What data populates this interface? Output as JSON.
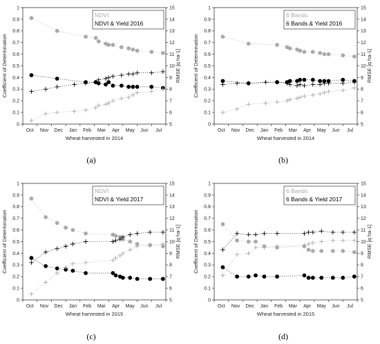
{
  "figure": {
    "panels": [
      {
        "letter": "(a)",
        "xlabel": "Wheat harvested in 2014",
        "legend_gray": "NDVI",
        "legend_black": "NDVI & Yield 2016"
      },
      {
        "letter": "(b)",
        "xlabel": "Wheat harvested in 2014",
        "legend_gray": "6 Bands",
        "legend_black": "6 Bands & Yield 2016"
      },
      {
        "letter": "(c)",
        "xlabel": "Wheat harvested in 2015",
        "legend_gray": "NDVI",
        "legend_black": "NDVI & Yield 2017"
      },
      {
        "letter": "(d)",
        "xlabel": "Wheat harvested in 2015",
        "legend_gray": "6 Bands",
        "legend_black": "6 Bands & Yield 2017"
      }
    ],
    "colors": {
      "gray_series": "#aaaaaa",
      "black_series": "#000000",
      "axis": "#333333"
    }
  },
  "chart_data": [
    {
      "type": "scatter",
      "title": "",
      "xlabel": "Wheat harvested in 2014",
      "ylabel": "Coefficient of Determination",
      "ylabel_right": "RMSE [q ha-1]",
      "categories": [
        "Oct",
        "Nov",
        "Dec",
        "Jan",
        "Feb",
        "Mar",
        "Apr",
        "May",
        "Jun",
        "Jul"
      ],
      "ylim": [
        0,
        1
      ],
      "yticks": [
        0,
        0.1,
        0.2,
        0.3,
        0.4,
        0.5,
        0.6,
        0.7,
        0.8,
        0.9,
        1
      ],
      "ylim_right": [
        5,
        15
      ],
      "yticks_right": [
        5,
        6,
        7,
        8,
        9,
        10,
        11,
        12,
        13,
        14,
        15
      ],
      "legend_position": "top-right",
      "series": [
        {
          "name": "NDVI",
          "style": "gray-circle",
          "axis": "left",
          "x": [
            0.1,
            1.9,
            3.9,
            4.6,
            4.8,
            5.3,
            5.5,
            5.8,
            6.4,
            6.9,
            7.2,
            7.5,
            8.5,
            9.3
          ],
          "y": [
            0.91,
            0.8,
            0.75,
            0.74,
            0.71,
            0.69,
            0.68,
            0.68,
            0.66,
            0.65,
            0.64,
            0.63,
            0.62,
            0.61
          ]
        },
        {
          "name": "NDVI & Yield 2016",
          "style": "black-circle",
          "axis": "left",
          "x": [
            0.1,
            1.9,
            3.9,
            4.6,
            4.8,
            5.3,
            5.5,
            5.8,
            6.4,
            6.9,
            7.2,
            7.5,
            8.5,
            9.3
          ],
          "y": [
            0.42,
            0.39,
            0.36,
            0.36,
            0.35,
            0.34,
            0.36,
            0.33,
            0.33,
            0.32,
            0.32,
            0.32,
            0.32,
            0.31
          ]
        },
        {
          "name": "NDVI RMSE",
          "style": "gray-plus",
          "axis": "right",
          "x": [
            0.1,
            1.1,
            1.9,
            3.1,
            3.9,
            4.6,
            4.8,
            5.3,
            5.5,
            5.8,
            6.4,
            6.9,
            7.2,
            7.5,
            8.5,
            9.3
          ],
          "y": [
            5.3,
            5.9,
            6.0,
            6.1,
            6.2,
            6.4,
            6.6,
            6.7,
            6.8,
            7.0,
            7.2,
            7.3,
            7.5,
            7.7,
            7.8,
            8.0
          ]
        },
        {
          "name": "NDVI & Yield 2016 RMSE",
          "style": "black-plus",
          "axis": "right",
          "x": [
            0.1,
            1.1,
            1.9,
            3.1,
            3.9,
            4.6,
            4.8,
            5.3,
            5.5,
            5.8,
            6.4,
            6.9,
            7.2,
            7.5,
            8.5,
            9.3
          ],
          "y": [
            7.8,
            8.0,
            8.2,
            8.4,
            8.5,
            8.6,
            8.8,
            8.9,
            9.0,
            9.1,
            9.2,
            9.3,
            9.3,
            9.4,
            9.4,
            9.5
          ]
        }
      ]
    },
    {
      "type": "scatter",
      "title": "",
      "xlabel": "Wheat harvested in 2014",
      "ylabel": "Coefficient of Determination",
      "ylabel_right": "RMSE [q ha-1]",
      "categories": [
        "Oct",
        "Nov",
        "Dec",
        "Jan",
        "Feb",
        "Mar",
        "Apr",
        "May",
        "Jun",
        "Jul"
      ],
      "ylim": [
        0,
        1
      ],
      "yticks": [
        0,
        0.1,
        0.2,
        0.3,
        0.4,
        0.5,
        0.6,
        0.7,
        0.8,
        0.9,
        1
      ],
      "ylim_right": [
        5,
        15
      ],
      "yticks_right": [
        5,
        6,
        7,
        8,
        9,
        10,
        11,
        12,
        13,
        14,
        15
      ],
      "legend_position": "top-right",
      "series": [
        {
          "name": "6 Bands",
          "style": "gray-circle",
          "axis": "left",
          "x": [
            0.1,
            1.9,
            3.9,
            4.6,
            4.8,
            5.3,
            5.5,
            5.8,
            6.4,
            6.9,
            7.2,
            7.5,
            8.5,
            9.3
          ],
          "y": [
            0.75,
            0.69,
            0.68,
            0.66,
            0.65,
            0.64,
            0.63,
            0.62,
            0.62,
            0.61,
            0.6,
            0.6,
            0.59,
            0.58
          ]
        },
        {
          "name": "6 Bands & Yield 2016",
          "style": "black-circle",
          "axis": "left",
          "x": [
            0.1,
            1.9,
            3.9,
            4.6,
            4.8,
            5.3,
            5.5,
            5.8,
            6.4,
            6.9,
            7.2,
            7.5,
            8.5,
            9.3
          ],
          "y": [
            0.37,
            0.35,
            0.36,
            0.36,
            0.37,
            0.37,
            0.38,
            0.38,
            0.38,
            0.37,
            0.37,
            0.37,
            0.38,
            0.37
          ]
        },
        {
          "name": "6 Bands RMSE",
          "style": "gray-plus",
          "axis": "right",
          "x": [
            0.1,
            1.1,
            1.9,
            3.1,
            3.9,
            4.6,
            4.8,
            5.3,
            5.5,
            5.8,
            6.4,
            6.9,
            7.2,
            7.5,
            8.5,
            9.3
          ],
          "y": [
            6.0,
            6.3,
            6.7,
            6.8,
            6.9,
            7.0,
            7.1,
            7.2,
            7.3,
            7.4,
            7.5,
            7.6,
            7.7,
            7.8,
            7.9,
            8.1
          ]
        },
        {
          "name": "6 Bands & Yield 2016 RMSE",
          "style": "black-plus",
          "axis": "right",
          "x": [
            0.1,
            1.1,
            1.9,
            3.1,
            3.9,
            4.6,
            4.8,
            5.3,
            5.5,
            5.8,
            6.4,
            6.9,
            7.2,
            7.5,
            8.5,
            9.3
          ],
          "y": [
            8.4,
            8.5,
            8.5,
            8.6,
            8.6,
            8.5,
            8.4,
            8.3,
            8.4,
            8.3,
            8.4,
            8.4,
            8.5,
            8.5,
            8.5,
            8.6
          ]
        }
      ]
    },
    {
      "type": "scatter",
      "title": "",
      "xlabel": "Wheat harvested in 2015",
      "ylabel": "Coefficient of Determination",
      "ylabel_right": "RMSE [q ha-1]",
      "categories": [
        "Oct",
        "Nov",
        "Dec",
        "Jan",
        "Feb",
        "Mar",
        "Apr",
        "May",
        "Jun",
        "Jul"
      ],
      "ylim": [
        0,
        1
      ],
      "yticks": [
        0,
        0.1,
        0.2,
        0.3,
        0.4,
        0.5,
        0.6,
        0.7,
        0.8,
        0.9,
        1
      ],
      "ylim_right": [
        5,
        15
      ],
      "yticks_right": [
        5,
        6,
        7,
        8,
        9,
        10,
        11,
        12,
        13,
        14,
        15
      ],
      "legend_position": "top-right",
      "series": [
        {
          "name": "NDVI",
          "style": "gray-circle",
          "axis": "left",
          "x": [
            0.1,
            1.1,
            1.9,
            2.5,
            3.0,
            3.9,
            5.8,
            6.0,
            6.3,
            6.5,
            7.0,
            7.5,
            8.4,
            9.3
          ],
          "y": [
            0.87,
            0.71,
            0.66,
            0.62,
            0.6,
            0.57,
            0.56,
            0.55,
            0.54,
            0.52,
            0.5,
            0.48,
            0.47,
            0.46
          ]
        },
        {
          "name": "NDVI & Yield 2017",
          "style": "black-circle",
          "axis": "left",
          "x": [
            0.1,
            1.1,
            1.9,
            2.5,
            3.0,
            3.9,
            5.8,
            6.0,
            6.3,
            6.5,
            7.0,
            7.5,
            8.4,
            9.3
          ],
          "y": [
            0.36,
            0.29,
            0.27,
            0.26,
            0.25,
            0.23,
            0.23,
            0.21,
            0.2,
            0.19,
            0.19,
            0.18,
            0.18,
            0.18
          ]
        },
        {
          "name": "NDVI RMSE",
          "style": "gray-plus",
          "axis": "right",
          "x": [
            0.1,
            1.1,
            1.9,
            2.5,
            3.0,
            3.9,
            5.8,
            6.0,
            6.3,
            6.5,
            7.0,
            7.5,
            8.4,
            9.3
          ],
          "y": [
            5.5,
            6.5,
            7.3,
            7.8,
            8.1,
            8.2,
            8.4,
            8.6,
            8.8,
            9.0,
            9.3,
            9.6,
            9.7,
            9.8
          ]
        },
        {
          "name": "NDVI & Yield 2017 RMSE",
          "style": "black-plus",
          "axis": "right",
          "x": [
            0.1,
            1.1,
            1.9,
            2.5,
            3.0,
            3.9,
            5.8,
            6.0,
            6.3,
            6.5,
            7.0,
            7.5,
            8.4,
            9.3
          ],
          "y": [
            8.2,
            9.1,
            9.4,
            9.6,
            9.8,
            10.0,
            10.0,
            10.1,
            10.2,
            10.4,
            10.6,
            10.7,
            10.8,
            10.8
          ]
        }
      ]
    },
    {
      "type": "scatter",
      "title": "",
      "xlabel": "Wheat harvested in 2015",
      "ylabel": "Coefficient of Determination",
      "ylabel_right": "RMSE [q ha-1]",
      "categories": [
        "Oct",
        "Nov",
        "Dec",
        "Jan",
        "Feb",
        "Mar",
        "Apr",
        "May",
        "Jun",
        "Jul"
      ],
      "ylim": [
        0,
        1
      ],
      "yticks": [
        0,
        0.1,
        0.2,
        0.3,
        0.4,
        0.5,
        0.6,
        0.7,
        0.8,
        0.9,
        1
      ],
      "ylim_right": [
        5,
        15
      ],
      "yticks_right": [
        5,
        6,
        7,
        8,
        9,
        10,
        11,
        12,
        13,
        14,
        15
      ],
      "legend_position": "top-right",
      "series": [
        {
          "name": "6 Bands",
          "style": "gray-circle",
          "axis": "left",
          "x": [
            0.1,
            1.1,
            1.9,
            2.4,
            3.0,
            3.9,
            5.8,
            6.1,
            6.4,
            7.0,
            7.8,
            8.5,
            9.3
          ],
          "y": [
            0.65,
            0.51,
            0.5,
            0.5,
            0.46,
            0.45,
            0.46,
            0.43,
            0.42,
            0.42,
            0.42,
            0.42,
            0.41
          ]
        },
        {
          "name": "6 Bands & Yield 2017",
          "style": "black-circle",
          "axis": "left",
          "x": [
            0.1,
            1.1,
            1.9,
            2.4,
            3.0,
            3.9,
            5.8,
            6.1,
            6.4,
            7.0,
            7.8,
            8.5,
            9.3
          ],
          "y": [
            0.28,
            0.2,
            0.2,
            0.21,
            0.2,
            0.2,
            0.21,
            0.19,
            0.19,
            0.19,
            0.19,
            0.19,
            0.2
          ]
        },
        {
          "name": "6 Bands RMSE",
          "style": "gray-plus",
          "axis": "right",
          "x": [
            0.1,
            1.1,
            1.9,
            2.4,
            3.0,
            3.9,
            5.8,
            6.1,
            6.4,
            7.0,
            7.8,
            8.5,
            9.3
          ],
          "y": [
            7.1,
            8.9,
            9.0,
            9.5,
            9.5,
            9.6,
            9.7,
            9.8,
            9.9,
            10.0,
            10.1,
            10.1,
            10.1
          ]
        },
        {
          "name": "6 Bands & Yield 2017 RMSE",
          "style": "black-plus",
          "axis": "right",
          "x": [
            0.1,
            1.1,
            1.9,
            2.4,
            3.0,
            3.9,
            5.8,
            6.1,
            6.4,
            7.0,
            7.8,
            8.5,
            9.3
          ],
          "y": [
            9.3,
            10.7,
            10.6,
            10.6,
            10.7,
            10.7,
            10.7,
            10.8,
            10.8,
            10.9,
            10.8,
            10.8,
            10.8
          ]
        }
      ]
    }
  ]
}
